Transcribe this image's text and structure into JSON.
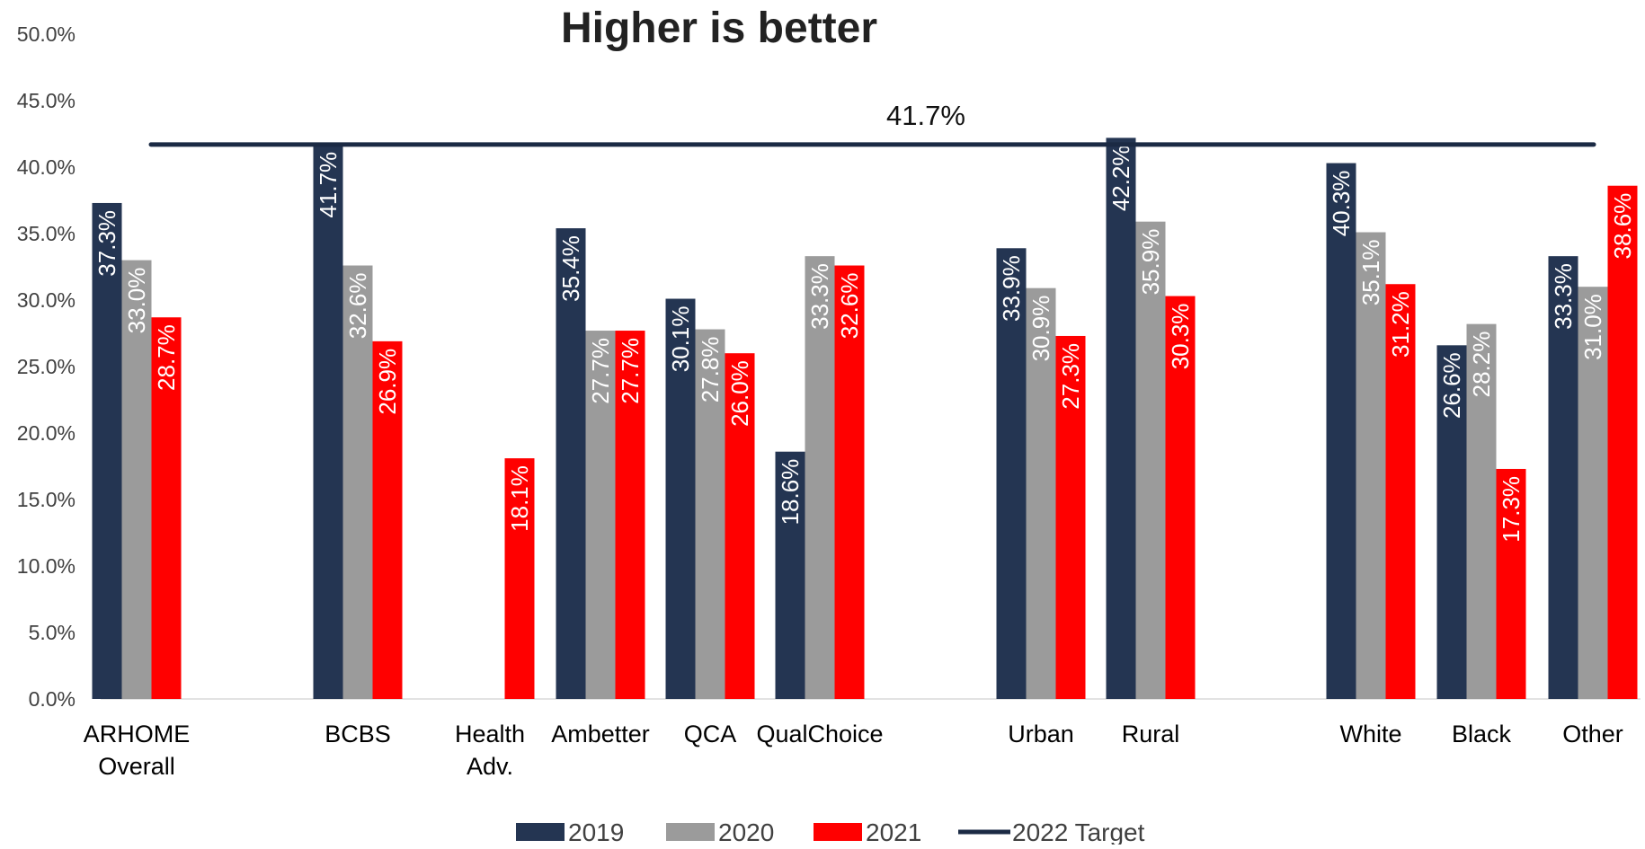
{
  "chart_data": {
    "type": "bar",
    "title": "Higher is better",
    "xlabel": "",
    "ylabel": "",
    "ylim": [
      0,
      50
    ],
    "y_tick_values": [
      0,
      5,
      10,
      15,
      20,
      25,
      30,
      35,
      40,
      45,
      50
    ],
    "y_tick_labels": [
      "0.0%",
      "5.0%",
      "10.0%",
      "15.0%",
      "20.0%",
      "25.0%",
      "30.0%",
      "35.0%",
      "40.0%",
      "45.0%",
      "50.0%"
    ],
    "grid": false,
    "legend_position": "bottom",
    "categories": [
      [
        "ARHOME",
        "Overall"
      ],
      [
        "BCBS"
      ],
      [
        "Health",
        "Adv."
      ],
      [
        "Ambetter"
      ],
      [
        "QCA"
      ],
      [
        "QualChoice"
      ],
      [
        "Urban"
      ],
      [
        "Rural"
      ],
      [
        "White"
      ],
      [
        "Black"
      ],
      [
        "Other"
      ]
    ],
    "series": [
      {
        "name": "2019",
        "color": "#243552",
        "values": [
          37.3,
          41.7,
          null,
          35.4,
          30.1,
          18.6,
          33.9,
          42.2,
          40.3,
          26.6,
          33.3
        ],
        "labels": [
          "37.3%",
          "41.7%",
          "",
          "35.4%",
          "30.1%",
          "18.6%",
          "33.9%",
          "42.2%",
          "40.3%",
          "26.6%",
          "33.3%"
        ]
      },
      {
        "name": "2020",
        "color": "#9b9b9b",
        "values": [
          33.0,
          32.6,
          null,
          27.7,
          27.8,
          33.3,
          30.9,
          35.9,
          35.1,
          28.2,
          31.0
        ],
        "labels": [
          "33.0%",
          "32.6%",
          "",
          "27.7%",
          "27.8%",
          "33.3%",
          "30.9%",
          "35.9%",
          "35.1%",
          "28.2%",
          "31.0%"
        ]
      },
      {
        "name": "2021",
        "color": "#ff0000",
        "values": [
          28.7,
          26.9,
          18.1,
          27.7,
          26.0,
          32.6,
          27.3,
          30.3,
          31.2,
          17.3,
          38.6
        ],
        "labels": [
          "28.7%",
          "26.9%",
          "18.1%",
          "27.7%",
          "26.0%",
          "32.6%",
          "27.3%",
          "30.3%",
          "31.2%",
          "17.3%",
          "38.6%"
        ]
      }
    ],
    "target": {
      "name": "2022 Target",
      "value": 41.7,
      "label": "41.7%",
      "color": "#1b2a44"
    }
  }
}
